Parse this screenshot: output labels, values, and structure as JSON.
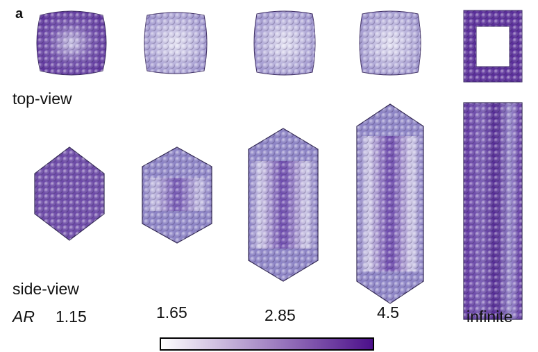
{
  "panel_label": "a",
  "row_labels": {
    "top": "top-view",
    "side": "side-view"
  },
  "ar_label": "AR",
  "aspect_ratios": [
    "1.15",
    "1.65",
    "2.85",
    "4.5",
    "infinite"
  ]
}
